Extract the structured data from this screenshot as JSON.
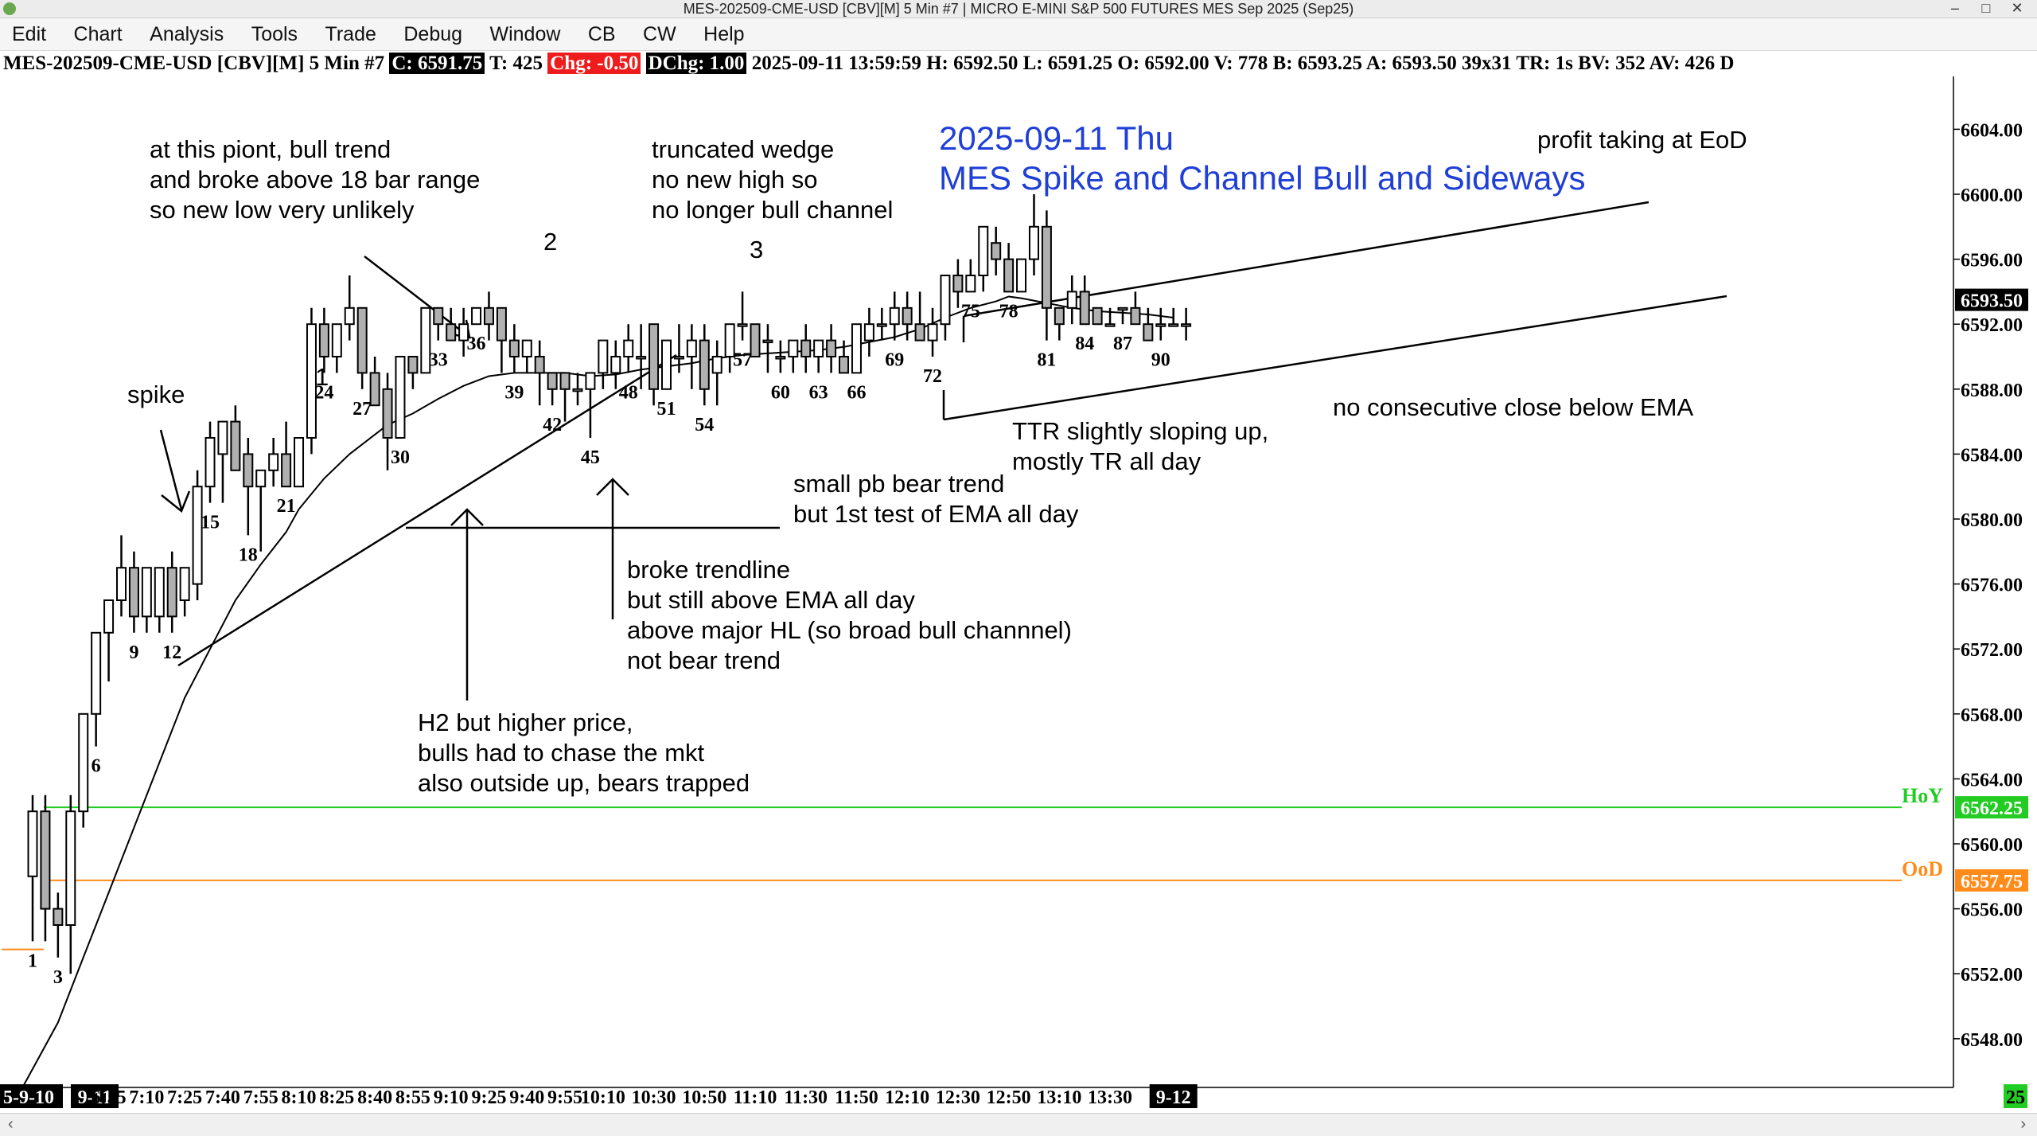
{
  "window": {
    "title": "MES-202509-CME-USD [CBV][M]  5 Min  #7 | MICRO E-MINI S&P 500 FUTURES MES Sep 2025 (Sep25)",
    "controls": [
      "–",
      "□",
      "✕"
    ]
  },
  "menu": [
    "Edit",
    "Chart",
    "Analysis",
    "Tools",
    "Trade",
    "Debug",
    "Window",
    "CB",
    "CW",
    "Help"
  ],
  "infobar": {
    "symbol": "MES-202509-CME-USD [CBV][M]  5 Min  #7",
    "close": "C: 6591.75",
    "ticks": "T: 425",
    "chg": "Chg: -0.50",
    "dchg": "DChg: 1.00",
    "rest": "2025-09-11 13:59:59 H: 6592.50 L: 6591.25 O: 6592.00 V: 778 B: 6593.25 A: 6593.50 39x31 TR: 1s BV: 352 AV: 426 D"
  },
  "colors": {
    "candle_up": "#ffffff",
    "candle_down": "#b0b0b0",
    "ema": "#000000",
    "hoy_line": "#22cc22",
    "ood_line": "#ff8c1a",
    "title_text": "#1f3fd6"
  },
  "chart_data": {
    "type": "candlestick",
    "title": "2025-09-11 Thu",
    "subtitle": "MES Spike and Channel Bull and Sideways",
    "timeframe": "5 Min",
    "ylim": [
      6545,
      6606
    ],
    "y_ticks": [
      6604,
      6600,
      6596,
      6592,
      6588,
      6584,
      6580,
      6576,
      6572,
      6568,
      6564,
      6560,
      6556,
      6552,
      6548
    ],
    "x_ticks": [
      {
        "bar": 0,
        "label": "5-9-10",
        "boxed": true
      },
      {
        "bar": 1,
        "label": "9-11",
        "boxed": true
      },
      {
        "bar": 6,
        "label": "6:55"
      },
      {
        "bar": 9,
        "label": "7:10"
      },
      {
        "bar": 12,
        "label": "7:25"
      },
      {
        "bar": 15,
        "label": "7:40"
      },
      {
        "bar": 18,
        "label": "7:55"
      },
      {
        "bar": 21,
        "label": "8:10"
      },
      {
        "bar": 24,
        "label": "8:25"
      },
      {
        "bar": 27,
        "label": "8:40"
      },
      {
        "bar": 30,
        "label": "8:55"
      },
      {
        "bar": 33,
        "label": "9:10"
      },
      {
        "bar": 36,
        "label": "9:25"
      },
      {
        "bar": 39,
        "label": "9:40"
      },
      {
        "bar": 42,
        "label": "9:55"
      },
      {
        "bar": 45,
        "label": "10:10"
      },
      {
        "bar": 49,
        "label": "10:30"
      },
      {
        "bar": 53,
        "label": "10:50"
      },
      {
        "bar": 57,
        "label": "11:10"
      },
      {
        "bar": 61,
        "label": "11:30"
      },
      {
        "bar": 65,
        "label": "11:50"
      },
      {
        "bar": 69,
        "label": "12:10"
      },
      {
        "bar": 73,
        "label": "12:30"
      },
      {
        "bar": 77,
        "label": "12:50"
      },
      {
        "bar": 81,
        "label": "13:10"
      },
      {
        "bar": 85,
        "label": "13:30"
      },
      {
        "bar": 90,
        "label": "9-12",
        "boxed": true
      }
    ],
    "ohlc": [
      [
        6558,
        6563,
        6554,
        6562
      ],
      [
        6562,
        6563,
        6554,
        6556
      ],
      [
        6556,
        6557,
        6553,
        6555
      ],
      [
        6555,
        6563,
        6552,
        6562
      ],
      [
        6562,
        6568,
        6561,
        6568
      ],
      [
        6568,
        6573,
        6566,
        6573
      ],
      [
        6573,
        6575,
        6570,
        6575
      ],
      [
        6575,
        6579,
        6574,
        6577
      ],
      [
        6577,
        6578,
        6573,
        6574
      ],
      [
        6574,
        6577,
        6573,
        6577
      ],
      [
        6574,
        6577,
        6573,
        6577
      ],
      [
        6577,
        6578,
        6573,
        6574
      ],
      [
        6575,
        6577,
        6574,
        6577
      ],
      [
        6576,
        6583,
        6575,
        6582
      ],
      [
        6582,
        6586,
        6581,
        6585
      ],
      [
        6584,
        6586,
        6581,
        6586
      ],
      [
        6586,
        6587,
        6583,
        6583
      ],
      [
        6584,
        6585,
        6579,
        6582
      ],
      [
        6582,
        6583,
        6578,
        6583
      ],
      [
        6583,
        6585,
        6582,
        6584
      ],
      [
        6584,
        6586,
        6582,
        6582
      ],
      [
        6582,
        6585,
        6582,
        6585
      ],
      [
        6585,
        6593,
        6584,
        6592
      ],
      [
        6592,
        6593,
        6589,
        6590
      ],
      [
        6590,
        6592,
        6589,
        6592
      ],
      [
        6592,
        6595,
        6591,
        6593
      ],
      [
        6593,
        6593,
        6588,
        6589
      ],
      [
        6589,
        6590,
        6587,
        6587
      ],
      [
        6588,
        6589,
        6583,
        6585
      ],
      [
        6585,
        6590,
        6585,
        6590
      ],
      [
        6590,
        6590,
        6588,
        6589
      ],
      [
        6589,
        6593,
        6589,
        6593
      ],
      [
        6593,
        6593,
        6591,
        6592
      ],
      [
        6592,
        6593,
        6591,
        6591
      ],
      [
        6591,
        6593,
        6590,
        6592
      ],
      [
        6592,
        6593,
        6592,
        6593
      ],
      [
        6593,
        6594,
        6591,
        6592
      ],
      [
        6593,
        6593,
        6589,
        6591
      ],
      [
        6591,
        6592,
        6589,
        6590
      ],
      [
        6590,
        6591,
        6589,
        6591
      ],
      [
        6590,
        6591,
        6587,
        6589
      ],
      [
        6589,
        6589,
        6587,
        6588
      ],
      [
        6589,
        6589,
        6586,
        6588
      ],
      [
        6588,
        6589,
        6587,
        6588
      ],
      [
        6588,
        6589,
        6585,
        6589
      ],
      [
        6589,
        6591,
        6588,
        6591
      ],
      [
        6589,
        6591,
        6588,
        6590
      ],
      [
        6590,
        6592,
        6589,
        6591
      ],
      [
        6590,
        6592,
        6588,
        6590
      ],
      [
        6592,
        6592,
        6587,
        6588
      ],
      [
        6588,
        6591,
        6588,
        6591
      ],
      [
        6590,
        6592,
        6589,
        6590
      ],
      [
        6590,
        6592,
        6588,
        6591
      ],
      [
        6591,
        6592,
        6587,
        6588
      ],
      [
        6589,
        6591,
        6587,
        6590
      ],
      [
        6590,
        6592,
        6589,
        6592
      ],
      [
        6592,
        6594,
        6591,
        6592
      ],
      [
        6592,
        6592,
        6590,
        6590
      ],
      [
        6591,
        6592,
        6589,
        6591
      ],
      [
        6590,
        6591,
        6589,
        6590
      ],
      [
        6590,
        6591,
        6589,
        6591
      ],
      [
        6591,
        6592,
        6589,
        6590
      ],
      [
        6590,
        6591,
        6589,
        6591
      ],
      [
        6591,
        6592,
        6589,
        6590
      ],
      [
        6590,
        6591,
        6589,
        6589
      ],
      [
        6589,
        6592,
        6589,
        6592
      ],
      [
        6591,
        6593,
        6590,
        6592
      ],
      [
        6592,
        6593,
        6591,
        6592
      ],
      [
        6592,
        6594,
        6591,
        6593
      ],
      [
        6593,
        6594,
        6591,
        6592
      ],
      [
        6592,
        6594,
        6591,
        6591
      ],
      [
        6591,
        6593,
        6590,
        6592
      ],
      [
        6592,
        6595,
        6591,
        6595
      ],
      [
        6595,
        6596,
        6593,
        6594
      ],
      [
        6594,
        6596,
        6594,
        6595
      ],
      [
        6595,
        6598,
        6594,
        6598
      ],
      [
        6597,
        6598,
        6595,
        6596
      ],
      [
        6596,
        6597,
        6594,
        6594
      ],
      [
        6594,
        6596,
        6594,
        6596
      ],
      [
        6596,
        6600,
        6595,
        6598
      ],
      [
        6598,
        6599,
        6591,
        6593
      ],
      [
        6593,
        6593,
        6591,
        6592
      ],
      [
        6593,
        6595,
        6592,
        6594
      ],
      [
        6594,
        6595,
        6592,
        6592
      ],
      [
        6593,
        6593,
        6592,
        6592
      ],
      [
        6592,
        6593,
        6592,
        6592
      ],
      [
        6593,
        6593,
        6592,
        6593
      ],
      [
        6593,
        6594,
        6592,
        6592
      ],
      [
        6592,
        6593,
        6591,
        6591
      ],
      [
        6592,
        6593,
        6591,
        6592
      ],
      [
        6592,
        6593,
        6592,
        6592
      ],
      [
        6592,
        6593,
        6591,
        6592
      ]
    ],
    "ema": [
      [
        -0.8,
        6545.0
      ],
      [
        2,
        6549
      ],
      [
        4,
        6553
      ],
      [
        6,
        6557
      ],
      [
        8,
        6561
      ],
      [
        10,
        6565
      ],
      [
        12,
        6569
      ],
      [
        14,
        6572
      ],
      [
        16,
        6575
      ],
      [
        18,
        6577.2
      ],
      [
        20,
        6579.2
      ],
      [
        21,
        6580.6
      ],
      [
        23,
        6582.5
      ],
      [
        25,
        6584.0
      ],
      [
        27,
        6585.2
      ],
      [
        28,
        6585.8
      ],
      [
        30,
        6586.5
      ],
      [
        32,
        6587.4
      ],
      [
        34,
        6588.2
      ],
      [
        36,
        6588.8
      ],
      [
        38,
        6589.0
      ],
      [
        40,
        6589.0
      ],
      [
        42,
        6589.0
      ],
      [
        44,
        6588.8
      ],
      [
        46,
        6588.9
      ],
      [
        48,
        6589.2
      ],
      [
        50,
        6589.4
      ],
      [
        52,
        6589.6
      ],
      [
        54,
        6589.9
      ],
      [
        56,
        6590.1
      ],
      [
        58,
        6590.2
      ],
      [
        60,
        6590.3
      ],
      [
        62,
        6590.4
      ],
      [
        64,
        6590.6
      ],
      [
        66,
        6590.9
      ],
      [
        68,
        6591.2
      ],
      [
        70,
        6591.7
      ],
      [
        72,
        6592.4
      ],
      [
        74,
        6593.0
      ],
      [
        76,
        6593.4
      ],
      [
        77,
        6593.7
      ],
      [
        78,
        6593.6
      ],
      [
        80,
        6593.3
      ],
      [
        82,
        6593.0
      ],
      [
        84,
        6592.8
      ],
      [
        86,
        6592.7
      ],
      [
        88,
        6592.6
      ],
      [
        90,
        6592.4
      ]
    ],
    "bar_numbers": [
      {
        "bar": 0,
        "label": "1"
      },
      {
        "bar": 2,
        "label": "3"
      },
      {
        "bar": 5,
        "label": "6"
      },
      {
        "bar": 8,
        "label": "9"
      },
      {
        "bar": 11,
        "label": "12"
      },
      {
        "bar": 14,
        "label": "15"
      },
      {
        "bar": 17,
        "label": "18"
      },
      {
        "bar": 20,
        "label": "21"
      },
      {
        "bar": 23,
        "label": "24"
      },
      {
        "bar": 26,
        "label": "27"
      },
      {
        "bar": 29,
        "label": "30"
      },
      {
        "bar": 32,
        "label": "33"
      },
      {
        "bar": 35,
        "label": "36"
      },
      {
        "bar": 38,
        "label": "39"
      },
      {
        "bar": 41,
        "label": "42"
      },
      {
        "bar": 44,
        "label": "45"
      },
      {
        "bar": 47,
        "label": "48"
      },
      {
        "bar": 50,
        "label": "51"
      },
      {
        "bar": 53,
        "label": "54"
      },
      {
        "bar": 56,
        "label": "57"
      },
      {
        "bar": 59,
        "label": "60"
      },
      {
        "bar": 62,
        "label": "63"
      },
      {
        "bar": 65,
        "label": "66"
      },
      {
        "bar": 68,
        "label": "69"
      },
      {
        "bar": 71,
        "label": "72"
      },
      {
        "bar": 74,
        "label": "75"
      },
      {
        "bar": 77,
        "label": "78"
      },
      {
        "bar": 80,
        "label": "81"
      },
      {
        "bar": 83,
        "label": "84"
      },
      {
        "bar": 86,
        "label": "87"
      },
      {
        "bar": 89,
        "label": "90"
      }
    ],
    "levels": [
      {
        "name": "HoY",
        "value": 6562.25,
        "label": "6562.25"
      },
      {
        "name": "OoD",
        "value": 6557.75,
        "label": "6557.75"
      }
    ],
    "last_price": {
      "value": 6593.5,
      "label": "6593.50"
    },
    "right_label": "25",
    "annotations": [
      {
        "text": "spike"
      },
      {
        "text": "1"
      },
      {
        "text": "2"
      },
      {
        "text": "3"
      },
      {
        "text": "at this piont, bull trend"
      },
      {
        "text": "and broke above 18 bar range"
      },
      {
        "text": "so new low very unlikely"
      },
      {
        "text": "truncated wedge"
      },
      {
        "text": "no new high so"
      },
      {
        "text": "no longer bull channel"
      },
      {
        "text": "profit taking at EoD"
      },
      {
        "text": "small pb bear trend"
      },
      {
        "text": "but 1st test of EMA all day"
      },
      {
        "text": "broke trendline"
      },
      {
        "text": "but still above EMA all day"
      },
      {
        "text": "above major HL (so broad bull channnel)"
      },
      {
        "text": "not bear trend"
      },
      {
        "text": "H2 but higher price,"
      },
      {
        "text": "bulls had to chase the mkt"
      },
      {
        "text": "also outside up, bears trapped"
      },
      {
        "text": "TTR slightly sloping up,"
      },
      {
        "text": "mostly TR all day"
      },
      {
        "text": "no consecutive close below EMA"
      }
    ]
  }
}
